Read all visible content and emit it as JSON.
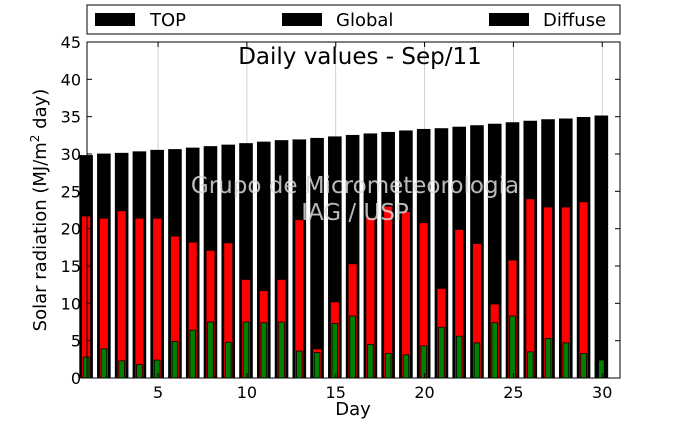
{
  "chart_data": {
    "type": "bar",
    "title": "Daily values - Sep/11",
    "xlabel": "Day",
    "ylabel_main": "Solar radiation (MJ/m",
    "ylabel_sup": "2",
    "ylabel_tail": " day)",
    "watermark_line1": "Grupo de Micrometeorologia",
    "watermark_line2": "IAG / USP",
    "xlim": [
      1,
      31
    ],
    "ylim": [
      0,
      45
    ],
    "x_ticks": [
      5,
      10,
      15,
      20,
      25,
      30
    ],
    "y_ticks": [
      0,
      5,
      10,
      15,
      20,
      25,
      30,
      35,
      40,
      45
    ],
    "grid": "vertical",
    "legend_position": "top",
    "legend": [
      {
        "label": "TOP",
        "color": "#000000"
      },
      {
        "label": "Global",
        "color": "#000000"
      },
      {
        "label": "Diffuse",
        "color": "#000000"
      }
    ],
    "days": [
      1,
      2,
      3,
      4,
      5,
      6,
      7,
      8,
      9,
      10,
      11,
      12,
      13,
      14,
      15,
      16,
      17,
      18,
      19,
      20,
      21,
      22,
      23,
      24,
      25,
      26,
      27,
      28,
      29,
      30
    ],
    "series": [
      {
        "name": "TOP",
        "color": "#000000",
        "values": [
          29.8,
          30.0,
          30.1,
          30.3,
          30.5,
          30.6,
          30.8,
          31.0,
          31.2,
          31.4,
          31.6,
          31.8,
          31.9,
          32.1,
          32.3,
          32.5,
          32.7,
          32.9,
          33.1,
          33.3,
          33.4,
          33.6,
          33.8,
          34.0,
          34.2,
          34.4,
          34.6,
          34.7,
          34.9,
          35.1
        ]
      },
      {
        "name": "Global",
        "color": "#ff0000",
        "values": [
          21.7,
          21.4,
          22.4,
          21.4,
          21.4,
          19.0,
          18.2,
          17.1,
          18.1,
          13.2,
          11.7,
          13.2,
          21.2,
          3.9,
          10.2,
          15.3,
          21.5,
          23.0,
          22.3,
          20.8,
          12.0,
          19.9,
          18.0,
          9.9,
          15.8,
          24.0,
          22.9,
          22.9,
          23.6,
          0.0
        ]
      },
      {
        "name": "Diffuse",
        "color": "#008000",
        "values": [
          2.8,
          3.9,
          2.3,
          1.8,
          2.4,
          4.9,
          6.4,
          7.5,
          4.8,
          7.5,
          7.4,
          7.5,
          3.6,
          3.4,
          7.3,
          8.3,
          4.5,
          3.3,
          3.1,
          4.3,
          6.8,
          5.6,
          4.7,
          7.4,
          8.3,
          3.5,
          5.3,
          4.7,
          3.3,
          2.4
        ]
      }
    ]
  }
}
